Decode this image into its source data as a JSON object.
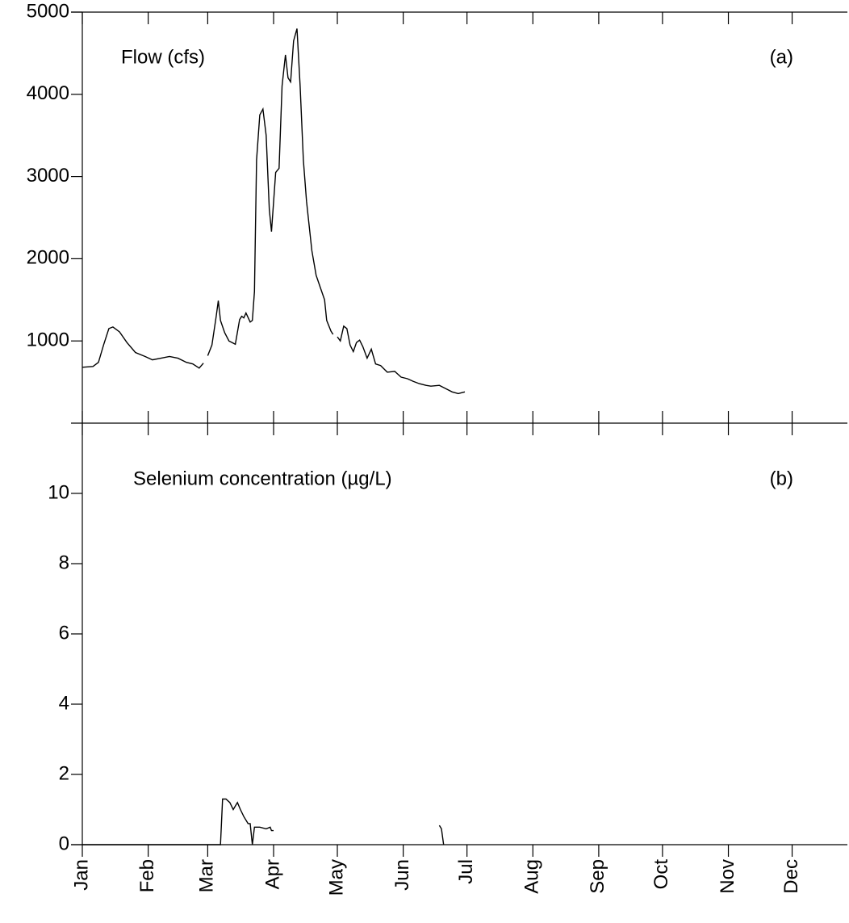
{
  "chart_data": [
    {
      "type": "line",
      "title": "Flow (cfs)",
      "panel_label": "(a)",
      "color": "#000000",
      "x": [
        0,
        5,
        7.6,
        10,
        12.5,
        14.4,
        17.5,
        21,
        25,
        29.6,
        33,
        37,
        41,
        45,
        49,
        52,
        55,
        57,
        null,
        59,
        61,
        63,
        64,
        65,
        67,
        69,
        72,
        74,
        75,
        76,
        77,
        79,
        80,
        81,
        82,
        83.5,
        85,
        86.5,
        88,
        89,
        91,
        92.6,
        94,
        95.6,
        96.8,
        98,
        99.4,
        101,
        102.5,
        104,
        105.5,
        108,
        110,
        112,
        114,
        115,
        117,
        118,
        null,
        120,
        121.4,
        123,
        124.5,
        126,
        127.5,
        129,
        130.5,
        132,
        134,
        136,
        138,
        140.4,
        143.5,
        147,
        150,
        153,
        155.6,
        158.6,
        161.7,
        164,
        168,
        171,
        174,
        176.9,
        180
      ],
      "values": [
        680,
        690,
        740,
        950,
        1150,
        1170,
        1110,
        980,
        860,
        810,
        770,
        790,
        810,
        790,
        740,
        720,
        670,
        730,
        null,
        820,
        950,
        1300,
        1490,
        1250,
        1100,
        1000,
        960,
        1260,
        1300,
        1280,
        1340,
        1230,
        1250,
        1600,
        3200,
        3750,
        3820,
        3500,
        2600,
        2330,
        3050,
        3100,
        4100,
        4480,
        4200,
        4150,
        4650,
        4800,
        4100,
        3200,
        2700,
        2100,
        1800,
        1650,
        1500,
        1250,
        1120,
        1080,
        null,
        1050,
        1000,
        1180,
        1150,
        950,
        870,
        980,
        1010,
        930,
        790,
        900,
        720,
        700,
        620,
        630,
        560,
        540,
        510,
        480,
        460,
        450,
        460,
        420,
        380,
        360,
        380
      ],
      "xlim": [
        0,
        360
      ],
      "ylim": [
        0,
        5000
      ],
      "yticks": [
        1000,
        2000,
        3000,
        4000,
        5000
      ]
    },
    {
      "type": "line",
      "title": "Selenium concentration (µg/L)",
      "panel_label": "(b)",
      "color": "#000000",
      "x": [
        0,
        65,
        66,
        67.6,
        69.4,
        71,
        73,
        74.4,
        76,
        78,
        79,
        80,
        81,
        83.5,
        86.5,
        88.4,
        89,
        90,
        null,
        168,
        169,
        170
      ],
      "values": [
        0,
        0,
        1.3,
        1.3,
        1.2,
        1.0,
        1.2,
        1.0,
        0.8,
        0.6,
        0.6,
        0,
        0.5,
        0.5,
        0.45,
        0.5,
        0.4,
        0.4,
        null,
        0.55,
        0.45,
        0
      ],
      "xlim": [
        0,
        360
      ],
      "ylim": [
        0,
        12
      ],
      "yticks": [
        0,
        2,
        4,
        6,
        8,
        10
      ],
      "xticks": [
        {
          "value": 0,
          "label": "Jan"
        },
        {
          "value": 31,
          "label": "Feb"
        },
        {
          "value": 59,
          "label": "Mar"
        },
        {
          "value": 90,
          "label": "Apr"
        },
        {
          "value": 120,
          "label": "May"
        },
        {
          "value": 151,
          "label": "Jun"
        },
        {
          "value": 181,
          "label": "Jul"
        },
        {
          "value": 212,
          "label": "Aug"
        },
        {
          "value": 243,
          "label": "Sep"
        },
        {
          "value": 273,
          "label": "Oct"
        },
        {
          "value": 304,
          "label": "Nov"
        },
        {
          "value": 334,
          "label": "Dec"
        }
      ]
    }
  ]
}
